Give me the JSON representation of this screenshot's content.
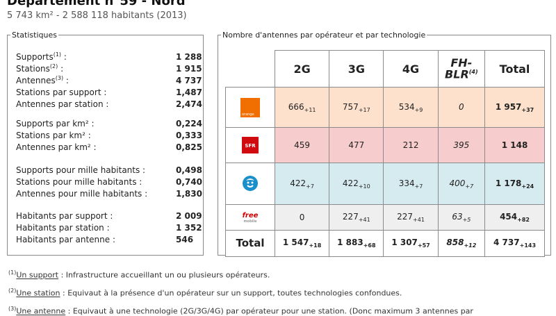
{
  "header": {
    "title": "Département n°59 - Nord",
    "subtitle": "5 743 km² - 2 588 118 habitants (2013)"
  },
  "stats": {
    "legend": "Statistiques",
    "rows": [
      {
        "label": "Supports",
        "sup": "(1)",
        "colon": " :",
        "value": "1 288"
      },
      {
        "label": "Stations",
        "sup": "(2)",
        "colon": " :",
        "value": "1 915"
      },
      {
        "label": "Antennes",
        "sup": "(3)",
        "colon": " :",
        "value": "4 737"
      },
      {
        "label": "Stations par support :",
        "value": "1,487"
      },
      {
        "label": "Antennes par station :",
        "value": "2,474"
      },
      {
        "label": "Supports par km² :",
        "value": "0,224"
      },
      {
        "label": "Stations par km² :",
        "value": "0,333"
      },
      {
        "label": "Antennes par km² :",
        "value": "0,825"
      },
      {
        "label": "Supports pour mille habitants :",
        "value": "0,498"
      },
      {
        "label": "Stations pour mille habitants :",
        "value": "0,740"
      },
      {
        "label": "Antennes pour mille habitants :",
        "value": "1,830"
      },
      {
        "label": "Habitants par support :",
        "value": "2 009"
      },
      {
        "label": "Habitants par station :",
        "value": "1 352"
      },
      {
        "label": "Habitants par antenne :",
        "value": "546"
      }
    ]
  },
  "table": {
    "legend": "Nombre d'antennes par opérateur et par technologie",
    "headers": [
      "2G",
      "3G",
      "4G",
      "FH-",
      "BLR",
      "(4)",
      "Total"
    ],
    "rows": [
      {
        "logo_text": "orange",
        "cells": [
          {
            "v": "666",
            "s": "+11"
          },
          {
            "v": "757",
            "s": "+17"
          },
          {
            "v": "534",
            "s": "+9"
          },
          {
            "v": "0",
            "s": ""
          },
          {
            "v": "1 957",
            "s": "+37"
          }
        ]
      },
      {
        "logo_text": "SFR",
        "cells": [
          {
            "v": "459",
            "s": ""
          },
          {
            "v": "477",
            "s": ""
          },
          {
            "v": "212",
            "s": ""
          },
          {
            "v": "395",
            "s": ""
          },
          {
            "v": "1 148",
            "s": ""
          }
        ]
      },
      {
        "logo_text": "",
        "cells": [
          {
            "v": "422",
            "s": "+7"
          },
          {
            "v": "422",
            "s": "+10"
          },
          {
            "v": "334",
            "s": "+7"
          },
          {
            "v": "400",
            "s": "+7"
          },
          {
            "v": "1 178",
            "s": "+24"
          }
        ]
      },
      {
        "logo_text": "free",
        "logo_sub": "mobile",
        "cells": [
          {
            "v": "0",
            "s": ""
          },
          {
            "v": "227",
            "s": "+41"
          },
          {
            "v": "227",
            "s": "+41"
          },
          {
            "v": "63",
            "s": "+5"
          },
          {
            "v": "454",
            "s": "+82"
          }
        ]
      }
    ],
    "total": {
      "label": "Total",
      "cells": [
        {
          "v": "1 547",
          "s": "+18"
        },
        {
          "v": "1 883",
          "s": "+68"
        },
        {
          "v": "1 307",
          "s": "+57"
        },
        {
          "v": "858",
          "s": "+12"
        },
        {
          "v": "4 737",
          "s": "+143"
        }
      ]
    },
    "colors": {
      "orange": "#fde1cd",
      "sfr": "#f7cccc",
      "bouygues": "#d6ebf0",
      "free": "#efefef"
    }
  },
  "footnotes": [
    {
      "num": "(1)",
      "term": "Un support",
      "text": " : Infrastructure accueillant un ou plusieurs opérateurs."
    },
    {
      "num": "(2)",
      "term": "Une station",
      "text": " : Equivaut à la présence d'un opérateur sur un support, toutes technologies confondues."
    },
    {
      "num": "(3)",
      "term": "Une antenne",
      "text": " : Equivaut à une technologie (2G/3G/4G) par opérateur pour une station. (Donc maximum 3 antennes par"
    }
  ]
}
